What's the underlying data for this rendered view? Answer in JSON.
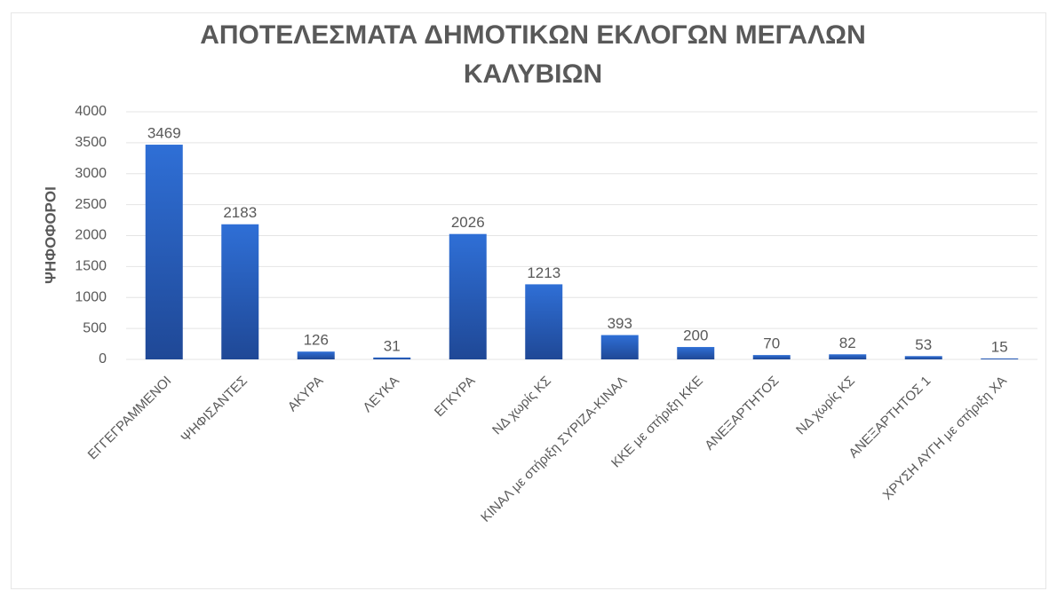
{
  "chart_data": {
    "type": "bar",
    "title": "ΑΠΟΤΕΛΕΣΜΑΤΑ ΔΗΜΟΤΙΚΩΝ ΕΚΛΟΓΩΝ ΜΕΓΑΛΩΝ ΚΑΛΥΒΙΩΝ",
    "ylabel": "ΨΗΦΟΦΟΡΟΙ",
    "categories": [
      "ΕΓΓΕΓΡΑΜΜΕΝΟΙ",
      "ΨΗΦΙΣΑΝΤΕΣ",
      "ΑΚΥΡΑ",
      "ΛΕΥΚΑ",
      "ΕΓΚΥΡΑ",
      "ΝΔ χωρίς ΚΣ",
      "ΚΙΝΑΛ με στήριξη ΣΥΡΙΖΑ-ΚΙΝΑΛ",
      "ΚΚΕ με στήριξη ΚΚΕ",
      "ΑΝΕΞΑΡΤΗΤΟΣ",
      "ΝΔ χωρίς ΚΣ",
      "ΑΝΕΞΑΡΤΗΤΟΣ 1",
      "ΧΡΥΣΗ ΑΥΓΗ με στήριξη ΧΑ"
    ],
    "values": [
      3469,
      2183,
      126,
      31,
      2026,
      1213,
      393,
      200,
      70,
      82,
      53,
      15
    ],
    "color": "#2f6fd6",
    "ylim": [
      0,
      4000
    ],
    "yticks": [
      0,
      500,
      1000,
      1500,
      2000,
      2500,
      3000,
      3500,
      4000
    ],
    "grid": true
  }
}
